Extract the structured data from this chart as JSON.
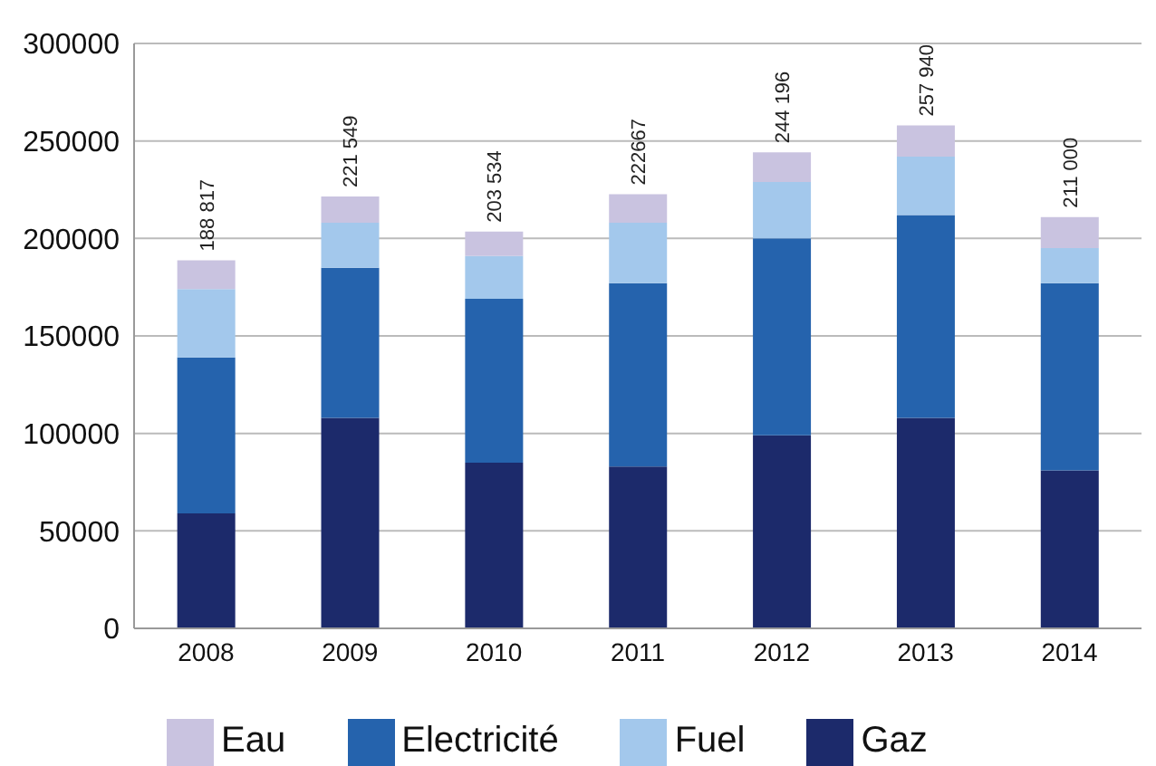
{
  "chart_data": {
    "type": "bar",
    "stacked": true,
    "categories": [
      "2008",
      "2009",
      "2010",
      "2011",
      "2012",
      "2013",
      "2014"
    ],
    "series": [
      {
        "name": "Gaz",
        "color": "#1c2a6b",
        "values": [
          59000,
          108000,
          85000,
          83000,
          99000,
          108000,
          81000
        ]
      },
      {
        "name": "Electricité",
        "color": "#2563ad",
        "values": [
          80000,
          77000,
          84000,
          94000,
          101000,
          104000,
          96000
        ]
      },
      {
        "name": "Fuel",
        "color": "#a3c8ec",
        "values": [
          35000,
          23000,
          22000,
          31000,
          29000,
          30000,
          18000
        ]
      },
      {
        "name": "Eau",
        "color": "#c9c3e0",
        "values": [
          14817,
          13549,
          12534,
          14667,
          15196,
          15940,
          16000
        ]
      }
    ],
    "totals": [
      "188 817",
      "221 549",
      "203 534",
      "222667",
      "244 196",
      "257 940",
      "211 000"
    ],
    "ylim": [
      0,
      300000
    ],
    "yticks": [
      0,
      50000,
      100000,
      150000,
      200000,
      250000,
      300000
    ],
    "grid": "y",
    "legend": "bottom"
  }
}
